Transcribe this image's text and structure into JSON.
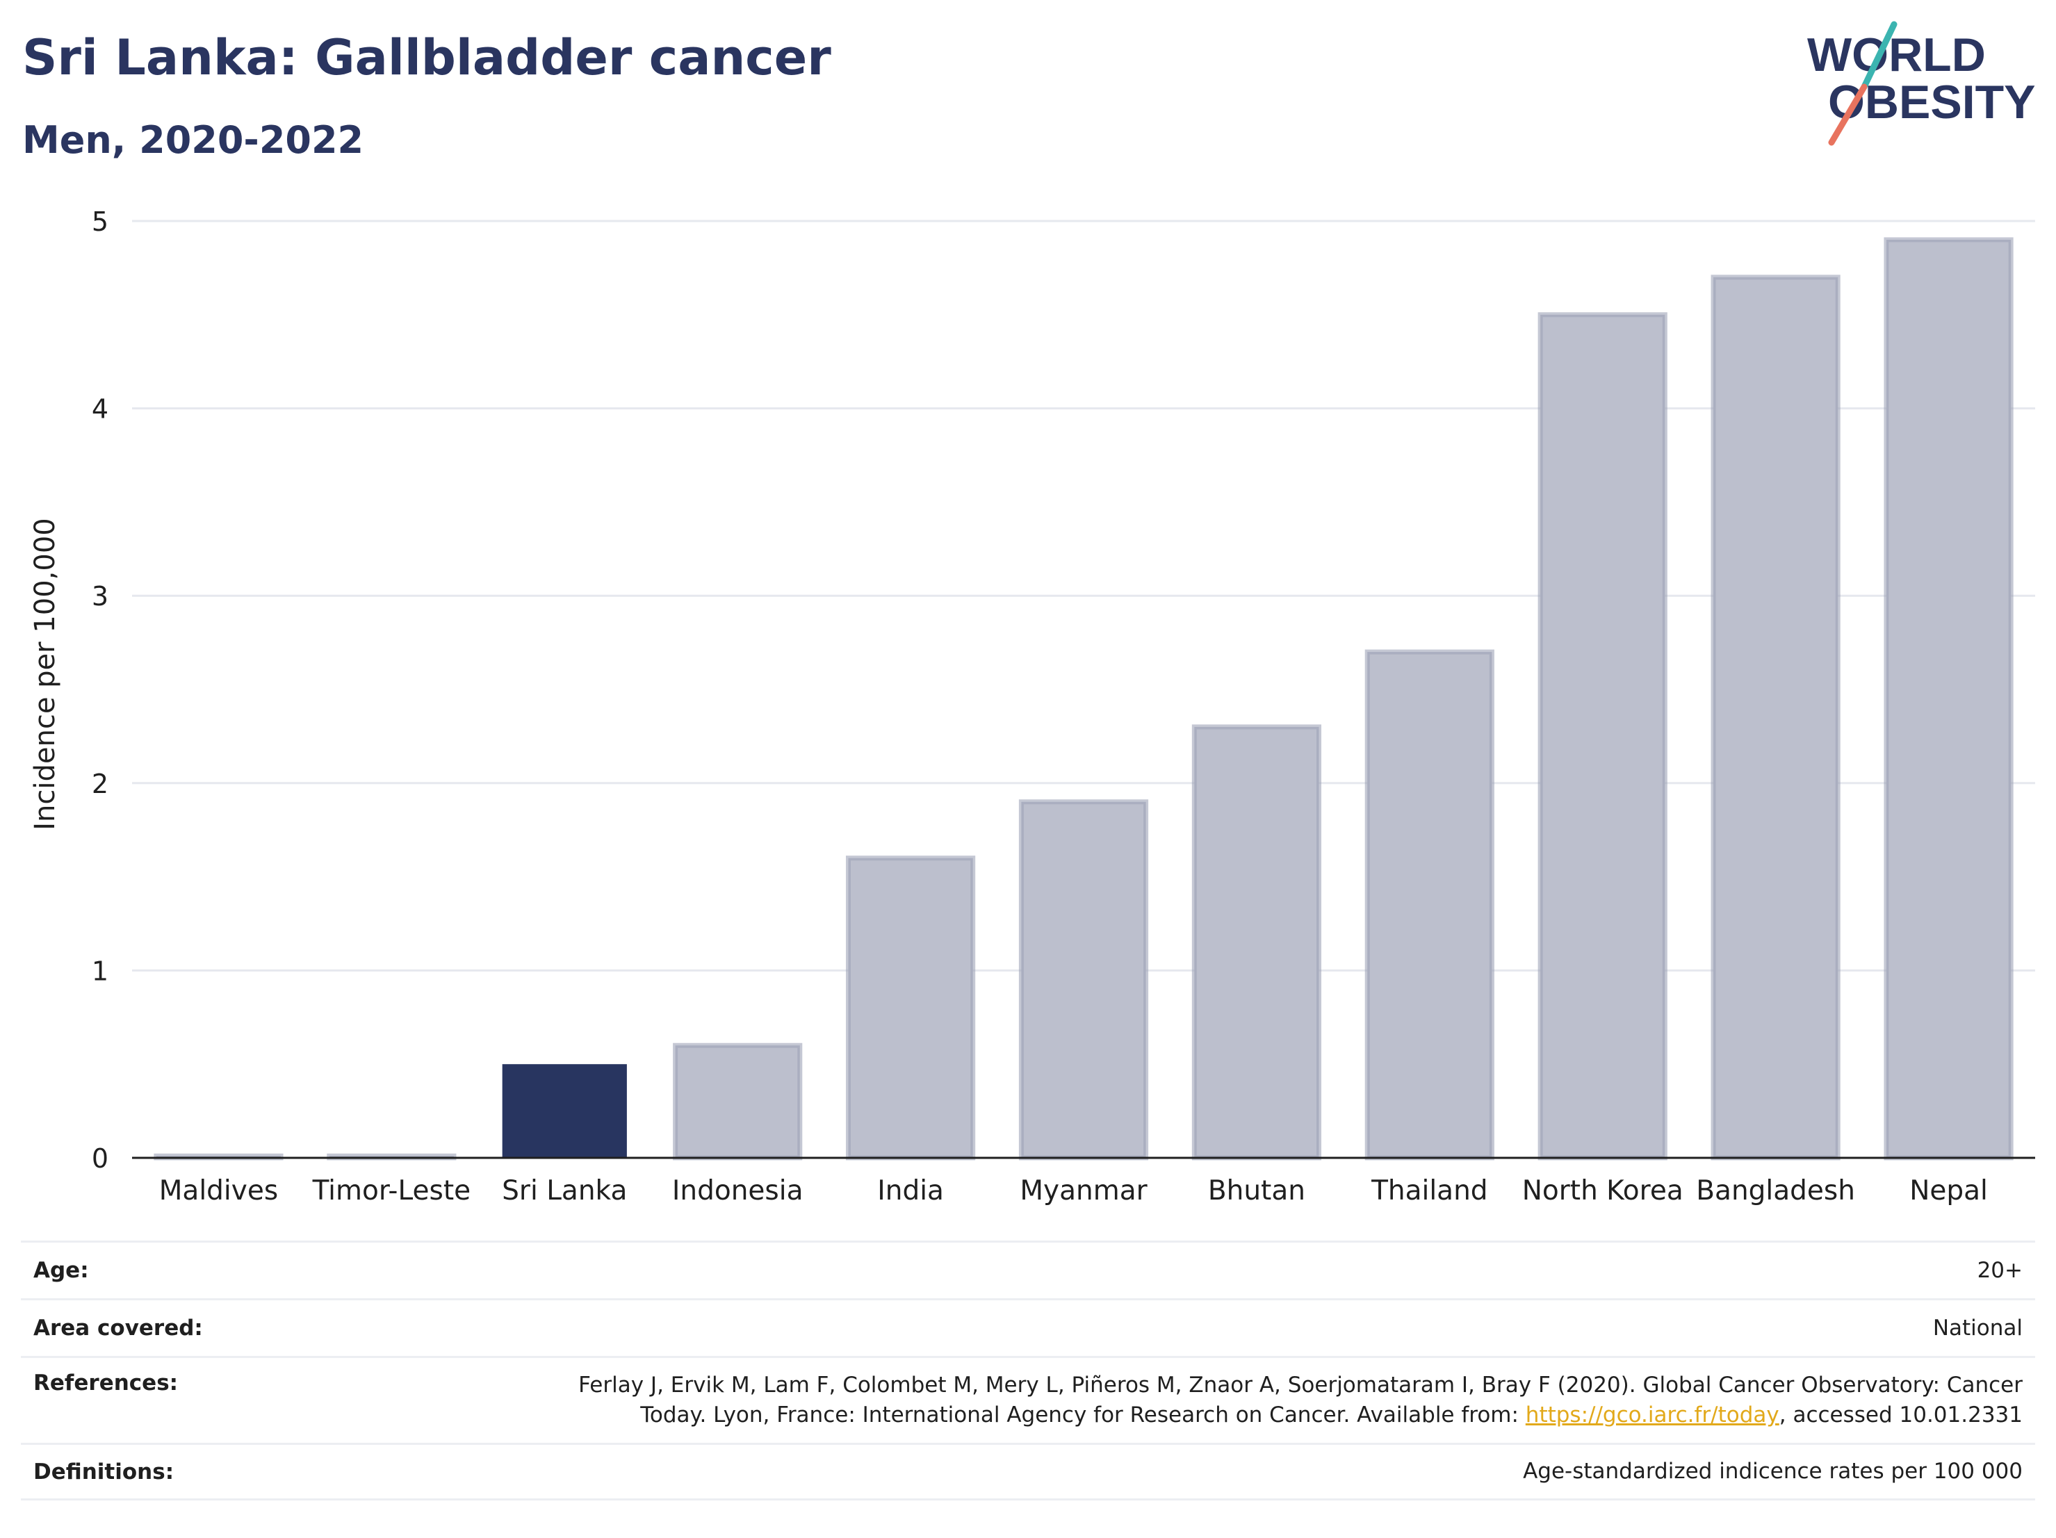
{
  "header": {
    "title": "Sri Lanka: Gallbladder cancer",
    "subtitle": "Men, 2020-2022"
  },
  "logo": {
    "line1": "WORLD",
    "line2": "OBESITY"
  },
  "chart_data": {
    "type": "bar",
    "categories": [
      "Maldives",
      "Timor-Leste",
      "Sri Lanka",
      "Indonesia",
      "India",
      "Myanmar",
      "Bhutan",
      "Thailand",
      "North Korea",
      "Bangladesh",
      "Nepal"
    ],
    "values": [
      0.01,
      0.01,
      0.5,
      0.6,
      1.6,
      1.9,
      2.3,
      2.7,
      4.5,
      4.7,
      4.9
    ],
    "highlight": "Sri Lanka",
    "ylabel": "Incidence per 100,000",
    "xlabel": "",
    "ylim": [
      0,
      5
    ],
    "yticks": [
      0,
      1,
      2,
      3,
      4,
      5
    ],
    "grid": true,
    "legend": "none",
    "colors": {
      "highlight": "#283560",
      "default": "#bcbfcd",
      "default_stroke": "#9ea3b8",
      "grid": "#e6e8ee",
      "axis": "#1f1f1f"
    }
  },
  "info": {
    "age_label": "Age:",
    "age_value": "20+",
    "area_label": "Area covered:",
    "area_value": "National",
    "references_label": "References:",
    "references_line1": "Ferlay J, Ervik M, Lam F, Colombet M, Mery L, Piñeros M, Znaor A, Soerjomataram I, Bray F (2020). Global Cancer Observatory: Cancer",
    "references_line2_before": "Today. Lyon, France: International Agency for Research on Cancer. Available from: ",
    "references_link": "https://gco.iarc.fr/today",
    "references_line2_after": ", accessed 10.01.2331",
    "definitions_label": "Definitions:",
    "definitions_value": "Age-standardized indicence rates per 100 000"
  }
}
